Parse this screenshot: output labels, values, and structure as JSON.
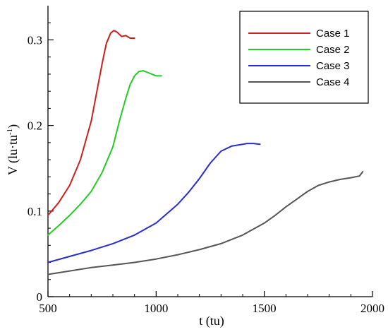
{
  "chart_data": {
    "type": "line",
    "title": "",
    "xlabel": "t (tu)",
    "ylabel": {
      "main": "V (lu·tu",
      "superscript": "-1",
      "close": ")"
    },
    "xlim": [
      500,
      2000
    ],
    "ylim": [
      0,
      0.34
    ],
    "x_ticks": [
      500,
      1000,
      1500,
      2000
    ],
    "x_tick_labels": [
      "500",
      "1000",
      "1500",
      "2000"
    ],
    "y_ticks": [
      0,
      0.1,
      0.2,
      0.3
    ],
    "y_tick_labels": [
      "0",
      "0.1",
      "0.2",
      "0.3"
    ],
    "grid": false,
    "legend_position": "top-right",
    "series": [
      {
        "name": "Case 1",
        "color": "#cc1f1f",
        "x": [
          500,
          550,
          600,
          650,
          700,
          730,
          750,
          770,
          790,
          805,
          820,
          840,
          860,
          880,
          900
        ],
        "y": [
          0.095,
          0.11,
          0.13,
          0.16,
          0.205,
          0.245,
          0.272,
          0.296,
          0.308,
          0.311,
          0.309,
          0.304,
          0.305,
          0.302,
          0.302
        ]
      },
      {
        "name": "Case 2",
        "color": "#22cc22",
        "x": [
          500,
          550,
          600,
          650,
          700,
          750,
          800,
          830,
          860,
          880,
          900,
          920,
          940,
          960,
          980,
          1000,
          1025
        ],
        "y": [
          0.072,
          0.083,
          0.095,
          0.108,
          0.123,
          0.145,
          0.175,
          0.205,
          0.232,
          0.248,
          0.258,
          0.263,
          0.264,
          0.262,
          0.26,
          0.258,
          0.258
        ]
      },
      {
        "name": "Case 3",
        "color": "#2a2ad6",
        "x": [
          500,
          600,
          700,
          800,
          900,
          1000,
          1100,
          1150,
          1200,
          1250,
          1300,
          1350,
          1400,
          1420,
          1450,
          1480
        ],
        "y": [
          0.04,
          0.047,
          0.054,
          0.062,
          0.072,
          0.086,
          0.108,
          0.122,
          0.138,
          0.156,
          0.17,
          0.176,
          0.178,
          0.179,
          0.179,
          0.178
        ]
      },
      {
        "name": "Case 4",
        "color": "#555555",
        "x": [
          500,
          600,
          700,
          800,
          900,
          1000,
          1100,
          1200,
          1300,
          1400,
          1500,
          1550,
          1600,
          1650,
          1700,
          1750,
          1800,
          1850,
          1900,
          1940,
          1955
        ],
        "y": [
          0.026,
          0.03,
          0.034,
          0.037,
          0.04,
          0.044,
          0.049,
          0.055,
          0.062,
          0.072,
          0.086,
          0.095,
          0.105,
          0.114,
          0.123,
          0.13,
          0.134,
          0.137,
          0.139,
          0.141,
          0.146
        ]
      }
    ]
  }
}
